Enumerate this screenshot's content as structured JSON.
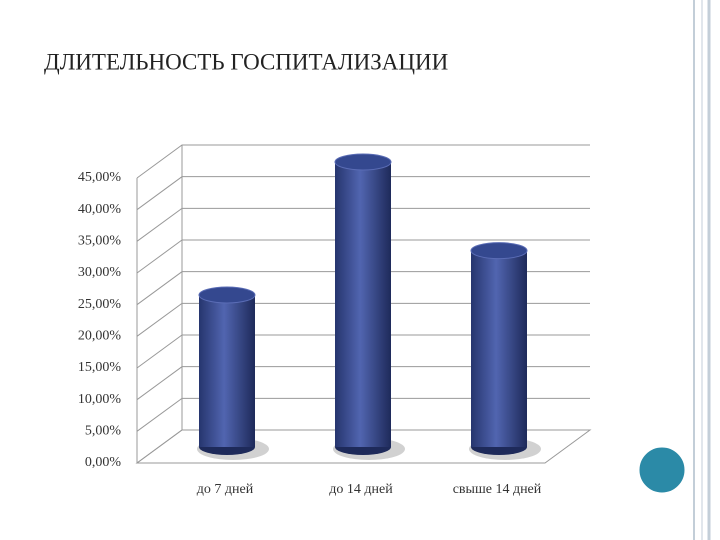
{
  "chart_data": {
    "type": "bar",
    "title": "ДЛИТЕЛЬНОСТЬ ГОСПИТАЛИЗАЦИИ",
    "categories": [
      "до 7 дней",
      "до 14 дней",
      "свыше 14 дней"
    ],
    "values": [
      24,
      45,
      31
    ],
    "color": "#34488f",
    "ylim": [
      0,
      45
    ],
    "yticks": [
      {
        "value": 0,
        "label": "0,00%"
      },
      {
        "value": 5,
        "label": "5,00%"
      },
      {
        "value": 10,
        "label": "10,00%"
      },
      {
        "value": 15,
        "label": "15,00%"
      },
      {
        "value": 20,
        "label": "20,00%"
      },
      {
        "value": 25,
        "label": "25,00%"
      },
      {
        "value": 30,
        "label": "30,00%"
      },
      {
        "value": 35,
        "label": "35,00%"
      },
      {
        "value": 40,
        "label": "40,00%"
      },
      {
        "value": 45,
        "label": "45,00%"
      }
    ],
    "grid": true
  }
}
